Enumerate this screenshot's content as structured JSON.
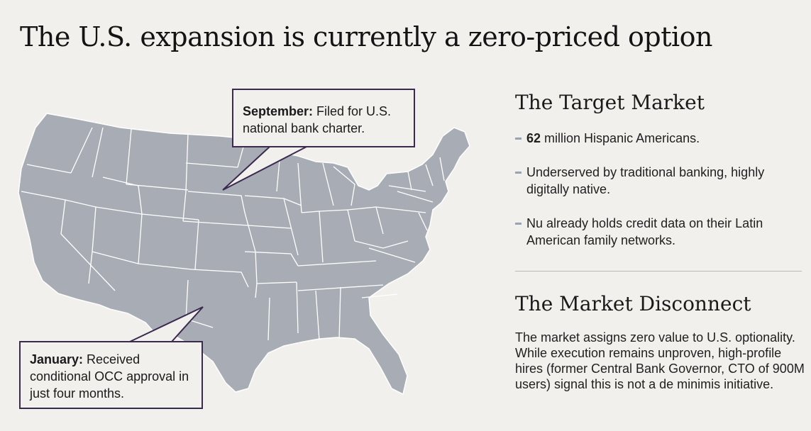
{
  "title": "The U.S. expansion is currently a zero-priced option",
  "map": {
    "fill_color": "#a8adb5",
    "border_color": "#ffffff",
    "callout_border_color": "#3b2a4f",
    "callouts": {
      "september": {
        "label": "September:",
        "text": " Filed for U.S. national bank charter."
      },
      "january": {
        "label": "January:",
        "text": " Received conditional OCC approval in just four months."
      }
    }
  },
  "target_market": {
    "heading": "The Target Market",
    "bullets": [
      {
        "bold": "62",
        "text": " million Hispanic Americans."
      },
      {
        "bold": "",
        "text": "Underserved by traditional banking, highly digitally native."
      },
      {
        "bold": "",
        "text": "Nu already holds credit data on their Latin American family networks."
      }
    ]
  },
  "market_disconnect": {
    "heading": "The Market Disconnect",
    "body": "The market assigns zero value to U.S. optionality. While execution remains unproven, high-profile hires (former Central Bank Governor, CTO of 900M users) signal this is not a de minimis initiative."
  }
}
